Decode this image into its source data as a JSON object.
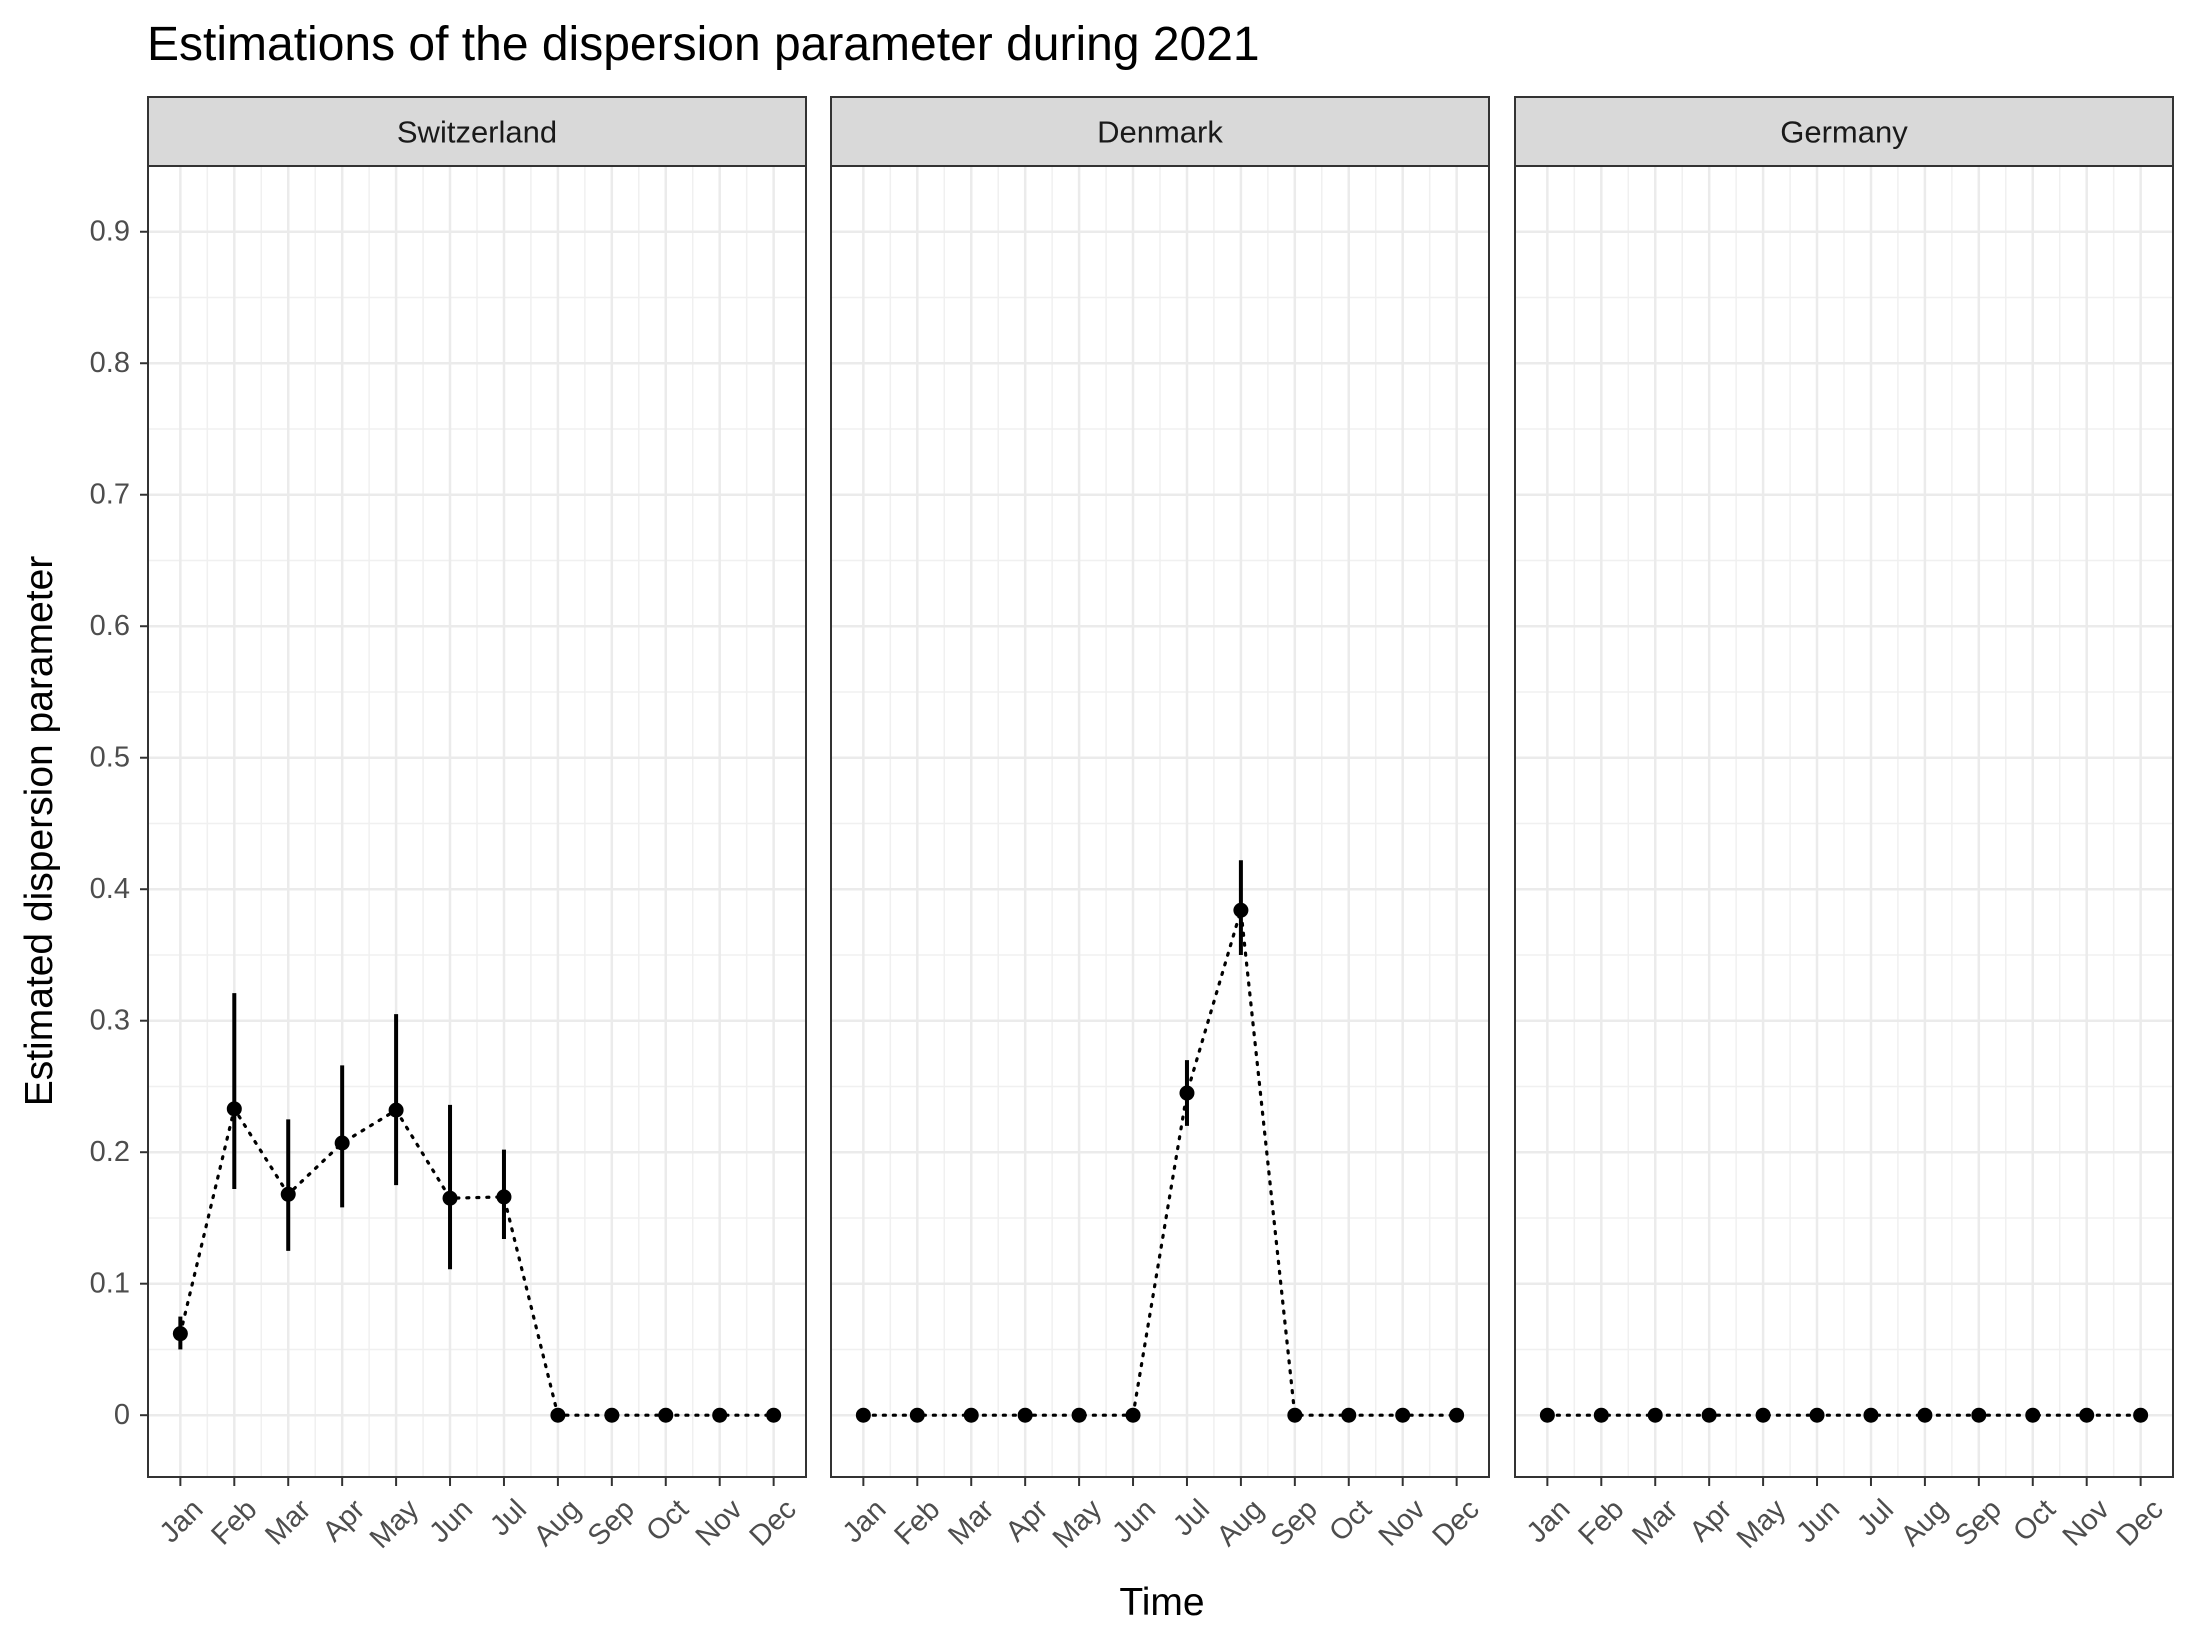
{
  "chart_data": {
    "type": "scatter",
    "title": "Estimations of the dispersion parameter during 2021",
    "xlabel": "Time",
    "ylabel": "Estimated dispersion parameter",
    "ylim": [
      -0.047,
      0.95
    ],
    "y_ticks": [
      0,
      0.1,
      0.2,
      0.3,
      0.4,
      0.5,
      0.6,
      0.7,
      0.8,
      0.9
    ],
    "y_tick_labels": [
      "0",
      "0.1",
      "0.2",
      "0.3",
      "0.4",
      "0.5",
      "0.6",
      "0.7",
      "0.8",
      "0.9"
    ],
    "categories": [
      "Jan",
      "Feb",
      "Mar",
      "Apr",
      "May",
      "Jun",
      "Jul",
      "Aug",
      "Sep",
      "Oct",
      "Nov",
      "Dec"
    ],
    "grid": true,
    "connector": "dotted line",
    "error_bars": true,
    "facets": [
      {
        "name": "Switzerland",
        "values": [
          0.062,
          0.233,
          0.168,
          0.207,
          0.232,
          0.165,
          0.166,
          0,
          0,
          0,
          0,
          0
        ],
        "lower": [
          0.05,
          0.172,
          0.125,
          0.158,
          0.175,
          0.111,
          0.134,
          null,
          null,
          null,
          null,
          null
        ],
        "upper": [
          0.075,
          0.321,
          0.225,
          0.266,
          0.305,
          0.236,
          0.202,
          null,
          null,
          null,
          null,
          null
        ]
      },
      {
        "name": "Denmark",
        "values": [
          0,
          0,
          0,
          0,
          0,
          0,
          0.245,
          0.384,
          0,
          0,
          0,
          0
        ],
        "lower": [
          null,
          null,
          null,
          null,
          null,
          null,
          0.22,
          0.35,
          null,
          null,
          null,
          null
        ],
        "upper": [
          null,
          null,
          null,
          null,
          null,
          null,
          0.27,
          0.422,
          null,
          null,
          null,
          null
        ]
      },
      {
        "name": "Germany",
        "values": [
          0,
          0,
          0,
          0,
          0,
          0,
          0,
          0,
          0,
          0,
          0,
          0
        ],
        "lower": [
          null,
          null,
          null,
          null,
          null,
          null,
          null,
          null,
          null,
          null,
          null,
          null
        ],
        "upper": [
          null,
          null,
          null,
          null,
          null,
          null,
          null,
          null,
          null,
          null,
          null,
          null
        ]
      }
    ]
  }
}
